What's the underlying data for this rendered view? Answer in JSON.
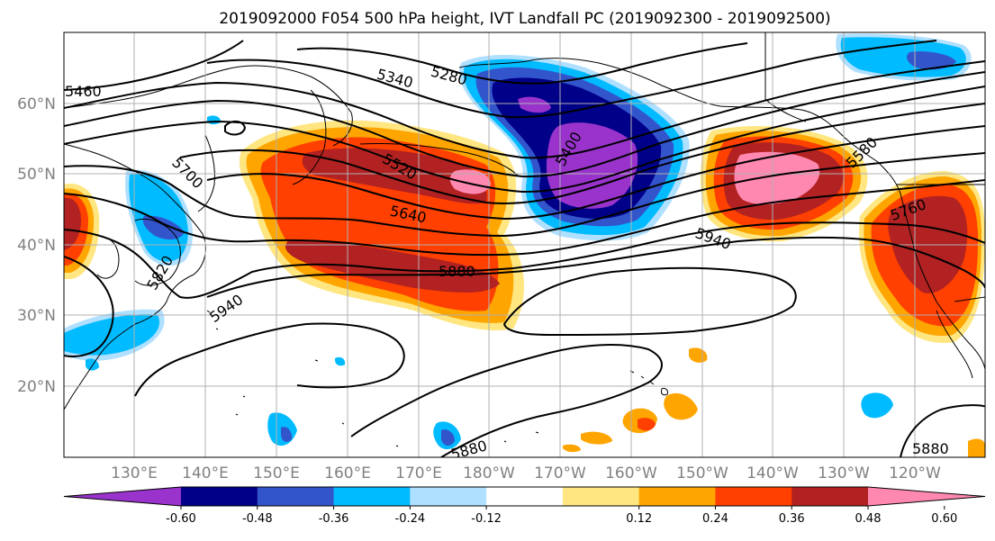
{
  "title": "2019092000 F054 500 hPa height, IVT Landfall PC (2019092300 - 2019092500)",
  "latitude_labels": [
    "60°N",
    "50°N",
    "40°N",
    "30°N",
    "20°N"
  ],
  "longitude_labels": [
    "130°E",
    "140°E",
    "150°E",
    "160°E",
    "170°E",
    "180°W",
    "170°W",
    "160°W",
    "150°W",
    "140°W",
    "130°W",
    "120°W"
  ],
  "colorbar": {
    "tick_labels": [
      "-0.60",
      "-0.48",
      "-0.36",
      "-0.24",
      "-0.12",
      "0.12",
      "0.24",
      "0.36",
      "0.48",
      "0.60"
    ],
    "colors": [
      "#9933cc",
      "#000088",
      "#3355cc",
      "#00bbff",
      "#b0e0ff",
      "#ffffff",
      "#ffe680",
      "#ffa500",
      "#ff4000",
      "#b22222",
      "#ff88b0"
    ]
  },
  "contour_labels": [
    "5460",
    "5340",
    "5280",
    "5520",
    "5700",
    "5640",
    "5400",
    "5580",
    "5760",
    "5820",
    "5880",
    "5940",
    "5940",
    "5880",
    "5880"
  ],
  "colors": {
    "land_outline": "#000000",
    "contour": "#000000",
    "grid": "#b0b0b0"
  }
}
